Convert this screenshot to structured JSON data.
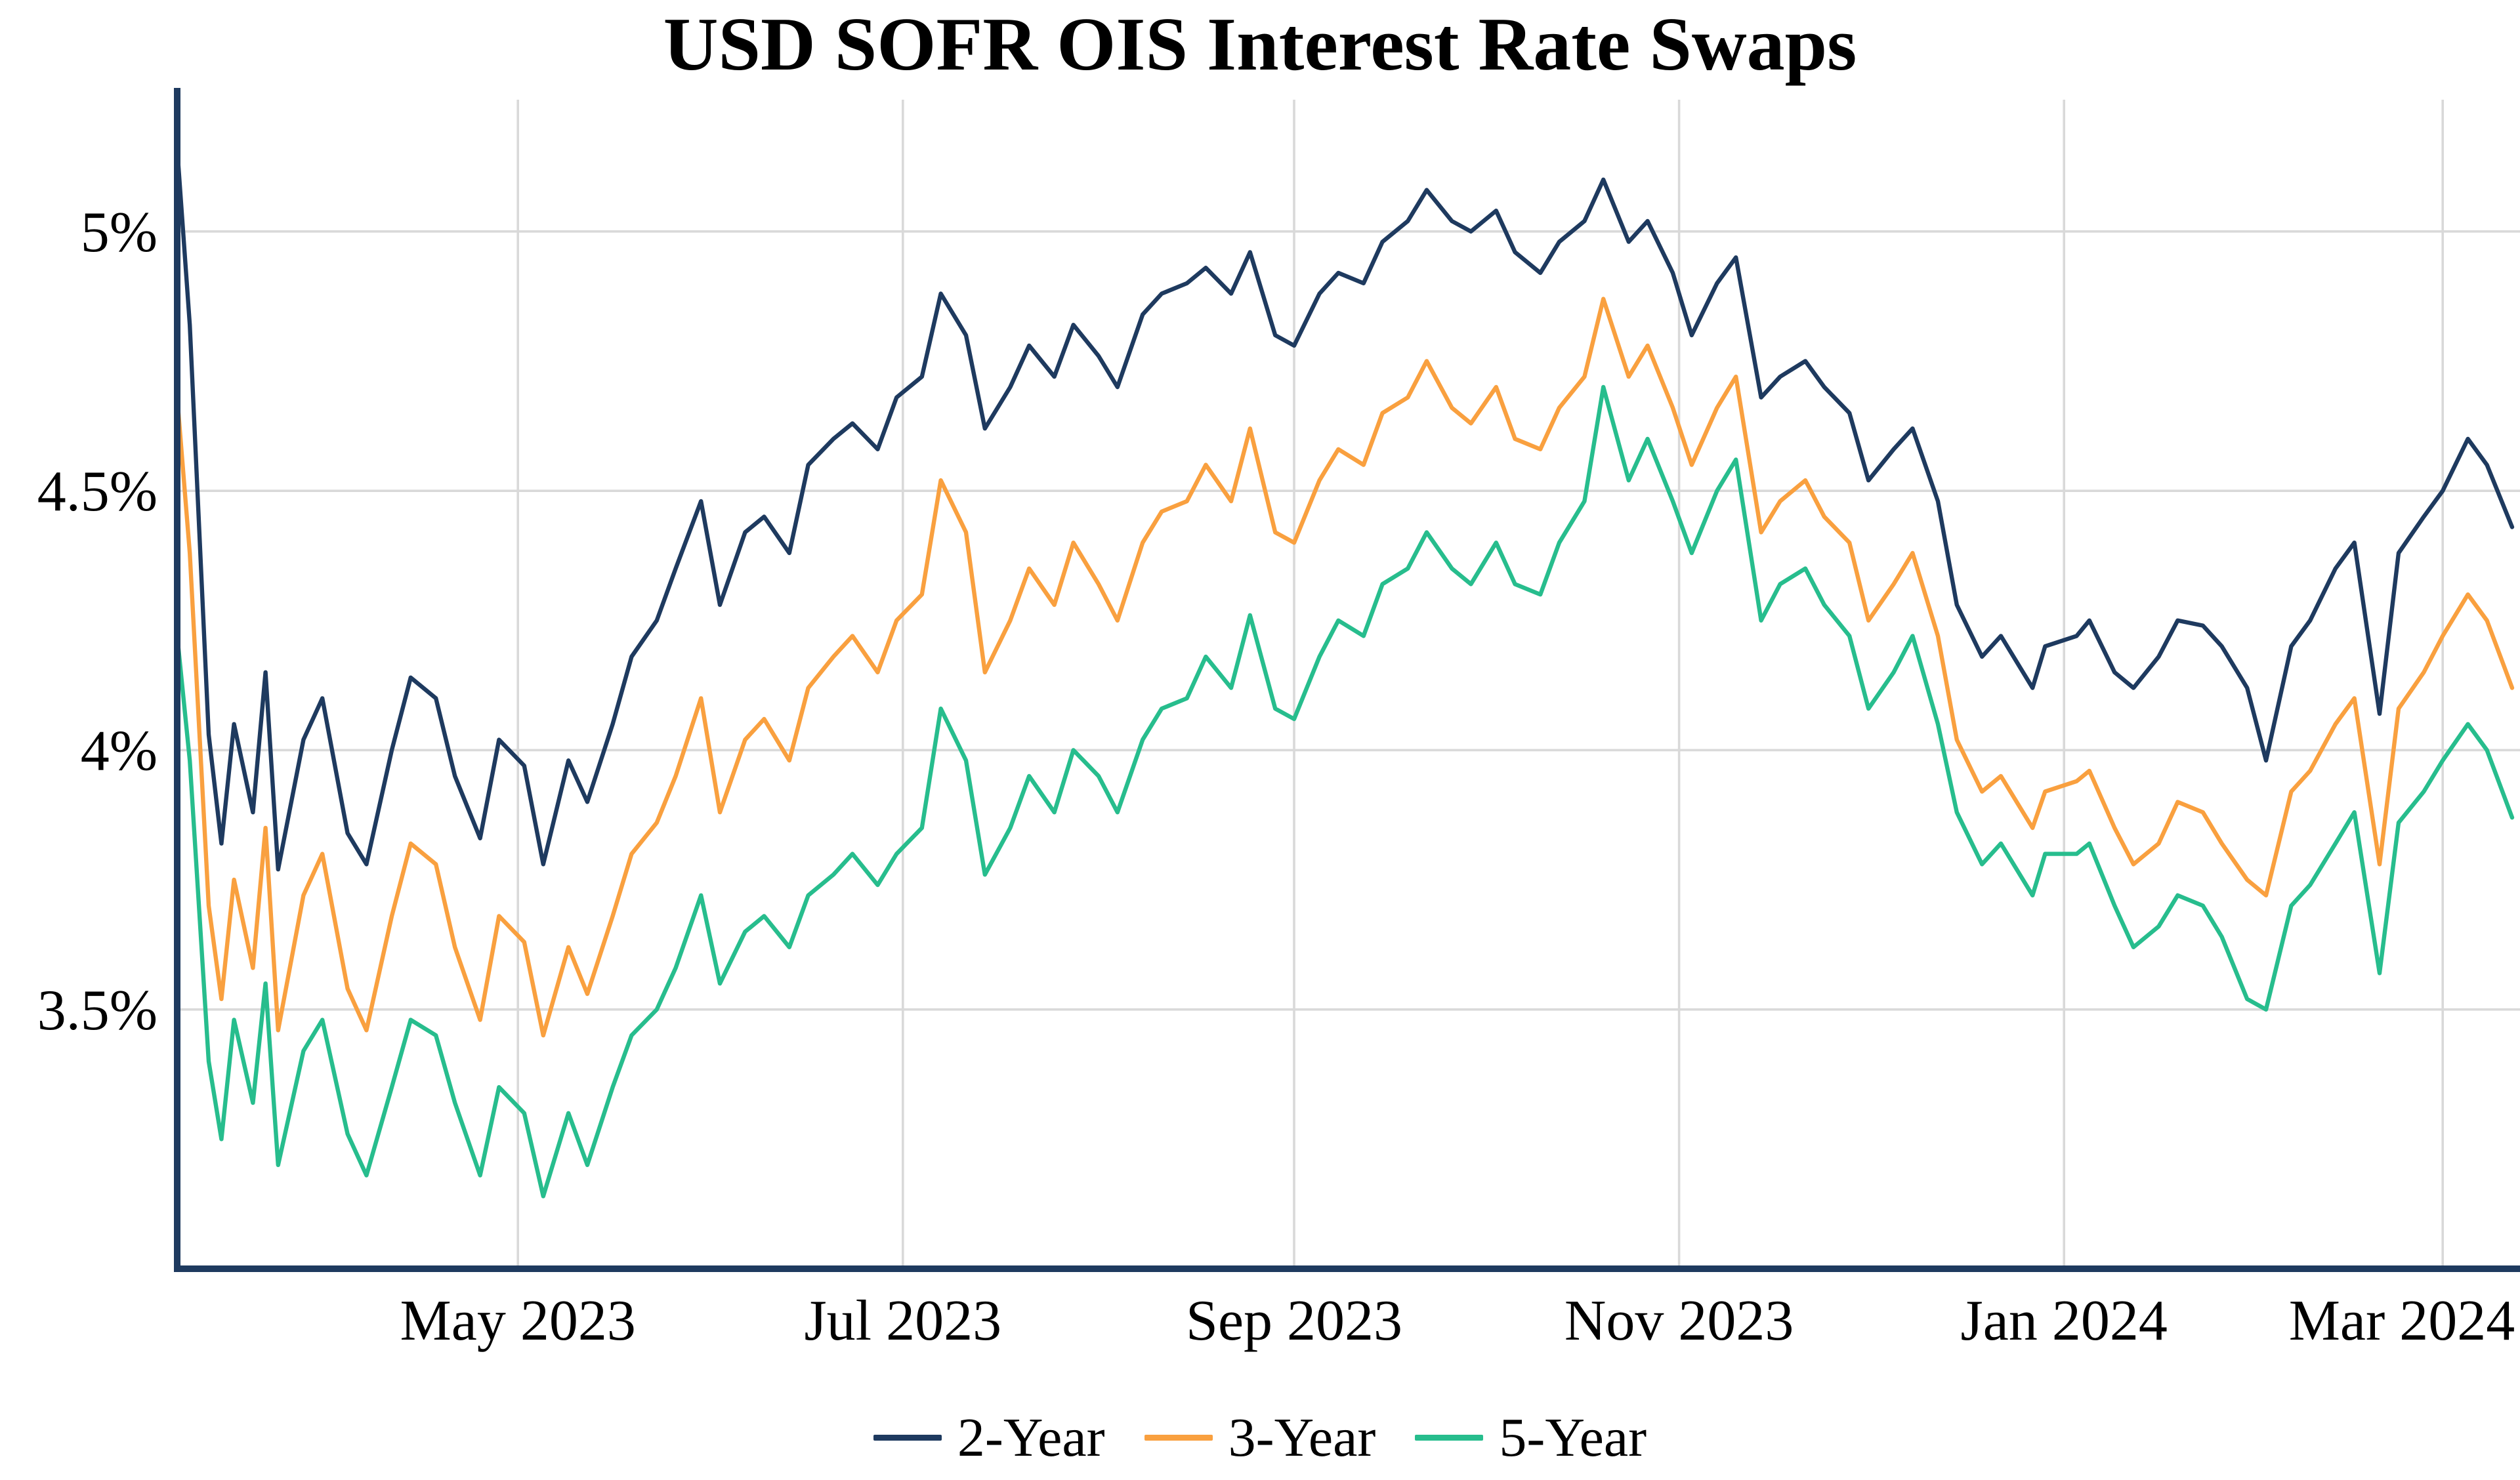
{
  "title": "USD SOFR OIS Interest Rate Swaps",
  "chart_data": {
    "type": "line",
    "title": "USD SOFR OIS Interest Rate Swaps",
    "ylabel": "",
    "xlabel": "",
    "ylim": [
      3.0,
      5.254
    ],
    "grid": true,
    "legend_position": "bottom",
    "axis_color": "#1E3A5F",
    "grid_color": "#D9D9D9",
    "x": [
      "2023-03-08",
      "2023-03-10",
      "2023-03-13",
      "2023-03-15",
      "2023-03-17",
      "2023-03-20",
      "2023-03-22",
      "2023-03-24",
      "2023-03-28",
      "2023-03-31",
      "2023-04-04",
      "2023-04-07",
      "2023-04-11",
      "2023-04-14",
      "2023-04-18",
      "2023-04-21",
      "2023-04-25",
      "2023-04-28",
      "2023-05-02",
      "2023-05-05",
      "2023-05-09",
      "2023-05-12",
      "2023-05-16",
      "2023-05-19",
      "2023-05-23",
      "2023-05-26",
      "2023-05-30",
      "2023-06-02",
      "2023-06-06",
      "2023-06-09",
      "2023-06-13",
      "2023-06-16",
      "2023-06-20",
      "2023-06-23",
      "2023-06-27",
      "2023-06-30",
      "2023-07-04",
      "2023-07-07",
      "2023-07-11",
      "2023-07-14",
      "2023-07-18",
      "2023-07-21",
      "2023-07-25",
      "2023-07-28",
      "2023-08-01",
      "2023-08-04",
      "2023-08-08",
      "2023-08-11",
      "2023-08-15",
      "2023-08-18",
      "2023-08-22",
      "2023-08-25",
      "2023-08-29",
      "2023-09-01",
      "2023-09-05",
      "2023-09-08",
      "2023-09-12",
      "2023-09-15",
      "2023-09-19",
      "2023-09-22",
      "2023-09-26",
      "2023-09-29",
      "2023-10-03",
      "2023-10-06",
      "2023-10-10",
      "2023-10-13",
      "2023-10-17",
      "2023-10-20",
      "2023-10-24",
      "2023-10-27",
      "2023-10-31",
      "2023-11-03",
      "2023-11-07",
      "2023-11-10",
      "2023-11-14",
      "2023-11-17",
      "2023-11-21",
      "2023-11-24",
      "2023-11-28",
      "2023-12-01",
      "2023-12-05",
      "2023-12-08",
      "2023-12-12",
      "2023-12-15",
      "2023-12-19",
      "2023-12-22",
      "2023-12-27",
      "2023-12-29",
      "2024-01-03",
      "2024-01-05",
      "2024-01-09",
      "2024-01-12",
      "2024-01-16",
      "2024-01-19",
      "2024-01-23",
      "2024-01-26",
      "2024-01-30",
      "2024-02-02",
      "2024-02-06",
      "2024-02-09",
      "2024-02-13",
      "2024-02-16",
      "2024-02-20",
      "2024-02-23",
      "2024-02-27",
      "2024-03-01",
      "2024-03-05",
      "2024-03-08",
      "2024-03-12"
    ],
    "xticks": [
      {
        "date": "2023-05-01",
        "label": "May 2023"
      },
      {
        "date": "2023-07-01",
        "label": "Jul 2023"
      },
      {
        "date": "2023-09-01",
        "label": "Sep 2023"
      },
      {
        "date": "2023-11-01",
        "label": "Nov 2023"
      },
      {
        "date": "2024-01-01",
        "label": "Jan 2024"
      },
      {
        "date": "2024-03-01",
        "label": "Mar 2024"
      }
    ],
    "yticks": [
      {
        "value": 3.5,
        "label": "3.5%"
      },
      {
        "value": 4.0,
        "label": "4%"
      },
      {
        "value": 4.5,
        "label": "4.5%"
      },
      {
        "value": 5.0,
        "label": "5%"
      }
    ],
    "series": [
      {
        "name": "2-Year",
        "color": "#1E3A5F",
        "values": [
          5.16,
          4.82,
          4.03,
          3.82,
          4.05,
          3.88,
          4.15,
          3.77,
          4.02,
          4.1,
          3.84,
          3.78,
          4.0,
          4.14,
          4.1,
          3.95,
          3.83,
          4.02,
          3.97,
          3.78,
          3.98,
          3.9,
          4.05,
          4.18,
          4.25,
          4.35,
          4.48,
          4.28,
          4.42,
          4.45,
          4.38,
          4.55,
          4.6,
          4.63,
          4.58,
          4.68,
          4.72,
          4.88,
          4.8,
          4.62,
          4.7,
          4.78,
          4.72,
          4.82,
          4.76,
          4.7,
          4.84,
          4.88,
          4.9,
          4.93,
          4.88,
          4.96,
          4.8,
          4.78,
          4.88,
          4.92,
          4.9,
          4.98,
          5.02,
          5.08,
          5.02,
          5.0,
          5.04,
          4.96,
          4.92,
          4.98,
          5.02,
          5.1,
          4.98,
          5.02,
          4.92,
          4.8,
          4.9,
          4.95,
          4.68,
          4.72,
          4.75,
          4.7,
          4.65,
          4.52,
          4.58,
          4.62,
          4.48,
          4.28,
          4.18,
          4.22,
          4.12,
          4.2,
          4.22,
          4.25,
          4.15,
          4.12,
          4.18,
          4.25,
          4.24,
          4.2,
          4.12,
          3.98,
          4.2,
          4.25,
          4.35,
          4.4,
          4.07,
          4.38,
          4.45,
          4.5,
          4.6,
          4.55,
          4.43
        ]
      },
      {
        "name": "3-Year",
        "color": "#F9A03F",
        "values": [
          4.68,
          4.38,
          3.7,
          3.52,
          3.75,
          3.58,
          3.85,
          3.46,
          3.72,
          3.8,
          3.54,
          3.46,
          3.68,
          3.82,
          3.78,
          3.62,
          3.48,
          3.68,
          3.63,
          3.45,
          3.62,
          3.53,
          3.68,
          3.8,
          3.86,
          3.95,
          4.1,
          3.88,
          4.02,
          4.06,
          3.98,
          4.12,
          4.18,
          4.22,
          4.15,
          4.25,
          4.3,
          4.52,
          4.42,
          4.15,
          4.25,
          4.35,
          4.28,
          4.4,
          4.32,
          4.25,
          4.4,
          4.46,
          4.48,
          4.55,
          4.48,
          4.62,
          4.42,
          4.4,
          4.52,
          4.58,
          4.55,
          4.65,
          4.68,
          4.75,
          4.66,
          4.63,
          4.7,
          4.6,
          4.58,
          4.66,
          4.72,
          4.87,
          4.72,
          4.78,
          4.66,
          4.55,
          4.66,
          4.72,
          4.42,
          4.48,
          4.52,
          4.45,
          4.4,
          4.25,
          4.32,
          4.38,
          4.22,
          4.02,
          3.92,
          3.95,
          3.85,
          3.92,
          3.94,
          3.96,
          3.85,
          3.78,
          3.82,
          3.9,
          3.88,
          3.82,
          3.75,
          3.72,
          3.92,
          3.96,
          4.05,
          4.1,
          3.78,
          4.08,
          4.15,
          4.22,
          4.3,
          4.25,
          4.12
        ]
      },
      {
        "name": "5-Year",
        "color": "#27BD8D",
        "values": [
          4.22,
          3.98,
          3.4,
          3.25,
          3.48,
          3.32,
          3.55,
          3.2,
          3.42,
          3.48,
          3.26,
          3.18,
          3.35,
          3.48,
          3.45,
          3.32,
          3.18,
          3.35,
          3.3,
          3.14,
          3.3,
          3.2,
          3.35,
          3.45,
          3.5,
          3.58,
          3.72,
          3.55,
          3.65,
          3.68,
          3.62,
          3.72,
          3.76,
          3.8,
          3.74,
          3.8,
          3.85,
          4.08,
          3.98,
          3.76,
          3.85,
          3.95,
          3.88,
          4.0,
          3.95,
          3.88,
          4.02,
          4.08,
          4.1,
          4.18,
          4.12,
          4.26,
          4.08,
          4.06,
          4.18,
          4.25,
          4.22,
          4.32,
          4.35,
          4.42,
          4.35,
          4.32,
          4.4,
          4.32,
          4.3,
          4.4,
          4.48,
          4.7,
          4.52,
          4.6,
          4.48,
          4.38,
          4.5,
          4.56,
          4.25,
          4.32,
          4.35,
          4.28,
          4.22,
          4.08,
          4.15,
          4.22,
          4.05,
          3.88,
          3.78,
          3.82,
          3.72,
          3.8,
          3.8,
          3.82,
          3.7,
          3.62,
          3.66,
          3.72,
          3.7,
          3.64,
          3.52,
          3.5,
          3.7,
          3.74,
          3.82,
          3.88,
          3.57,
          3.86,
          3.92,
          3.98,
          4.05,
          4.0,
          3.87
        ]
      }
    ]
  }
}
